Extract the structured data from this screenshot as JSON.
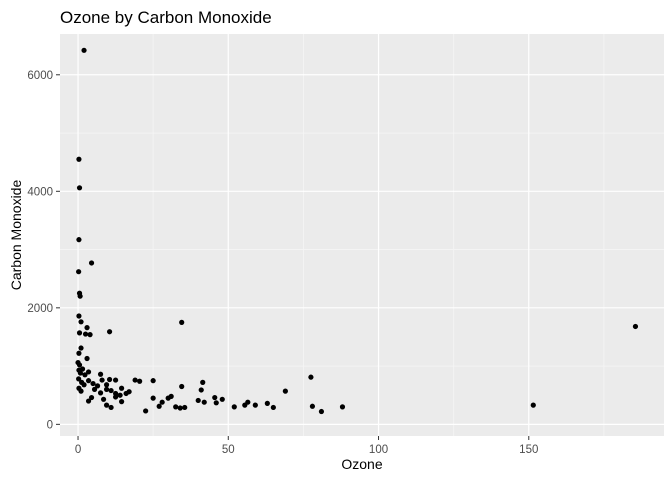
{
  "chart_data": {
    "type": "scatter",
    "title": "Ozone by Carbon Monoxide",
    "xlabel": "Ozone",
    "ylabel": "Carbon Monoxide",
    "xlim": [
      -6,
      195
    ],
    "ylim": [
      -200,
      6700
    ],
    "x_ticks": [
      0,
      50,
      100,
      150
    ],
    "y_ticks": [
      0,
      2000,
      4000,
      6000
    ],
    "x_tick_labels": [
      "0",
      "50",
      "100",
      "150"
    ],
    "y_tick_labels": [
      "0",
      "2000",
      "4000",
      "6000"
    ],
    "grid": true,
    "point_color": "#000000",
    "panel_color": "#ebebeb",
    "points": [
      {
        "x": 2,
        "y": 6420
      },
      {
        "x": 0.3,
        "y": 4550
      },
      {
        "x": 0.5,
        "y": 4060
      },
      {
        "x": 0.3,
        "y": 3170
      },
      {
        "x": 4.5,
        "y": 2770
      },
      {
        "x": 0.2,
        "y": 2620
      },
      {
        "x": 0.5,
        "y": 2250
      },
      {
        "x": 0.7,
        "y": 2200
      },
      {
        "x": 0.3,
        "y": 1860
      },
      {
        "x": 1,
        "y": 1760
      },
      {
        "x": 3,
        "y": 1660
      },
      {
        "x": 34.5,
        "y": 1750
      },
      {
        "x": 0.5,
        "y": 1570
      },
      {
        "x": 2.5,
        "y": 1550
      },
      {
        "x": 4,
        "y": 1540
      },
      {
        "x": 10.5,
        "y": 1590
      },
      {
        "x": 185.5,
        "y": 1680
      },
      {
        "x": 1,
        "y": 1310
      },
      {
        "x": 0.3,
        "y": 1220
      },
      {
        "x": 3,
        "y": 1130
      },
      {
        "x": 0,
        "y": 1060
      },
      {
        "x": 0.5,
        "y": 1020
      },
      {
        "x": 1.5,
        "y": 950
      },
      {
        "x": 0.3,
        "y": 930
      },
      {
        "x": 0.8,
        "y": 880
      },
      {
        "x": 2.3,
        "y": 850
      },
      {
        "x": 3.5,
        "y": 900
      },
      {
        "x": 7.5,
        "y": 860
      },
      {
        "x": 0.2,
        "y": 780
      },
      {
        "x": 1.2,
        "y": 720
      },
      {
        "x": 3.5,
        "y": 750
      },
      {
        "x": 5,
        "y": 700
      },
      {
        "x": 6.5,
        "y": 660
      },
      {
        "x": 8,
        "y": 760
      },
      {
        "x": 9.5,
        "y": 680
      },
      {
        "x": 10.5,
        "y": 770
      },
      {
        "x": 12.5,
        "y": 760
      },
      {
        "x": 14.5,
        "y": 620
      },
      {
        "x": 0.3,
        "y": 620
      },
      {
        "x": 1,
        "y": 570
      },
      {
        "x": 2,
        "y": 680
      },
      {
        "x": 5.5,
        "y": 600
      },
      {
        "x": 7.5,
        "y": 540
      },
      {
        "x": 9.5,
        "y": 600
      },
      {
        "x": 11,
        "y": 580
      },
      {
        "x": 12.5,
        "y": 530
      },
      {
        "x": 14,
        "y": 500
      },
      {
        "x": 16,
        "y": 530
      },
      {
        "x": 17,
        "y": 560
      },
      {
        "x": 19,
        "y": 760
      },
      {
        "x": 20.5,
        "y": 740
      },
      {
        "x": 25,
        "y": 750
      },
      {
        "x": 3.5,
        "y": 400
      },
      {
        "x": 4.5,
        "y": 460
      },
      {
        "x": 8.5,
        "y": 430
      },
      {
        "x": 9.5,
        "y": 330
      },
      {
        "x": 11,
        "y": 290
      },
      {
        "x": 12.5,
        "y": 470
      },
      {
        "x": 14.5,
        "y": 390
      },
      {
        "x": 22.5,
        "y": 230
      },
      {
        "x": 25,
        "y": 450
      },
      {
        "x": 27,
        "y": 310
      },
      {
        "x": 28,
        "y": 380
      },
      {
        "x": 30,
        "y": 450
      },
      {
        "x": 31,
        "y": 480
      },
      {
        "x": 32.5,
        "y": 300
      },
      {
        "x": 34,
        "y": 280
      },
      {
        "x": 35.5,
        "y": 290
      },
      {
        "x": 34.5,
        "y": 650
      },
      {
        "x": 40,
        "y": 410
      },
      {
        "x": 41,
        "y": 590
      },
      {
        "x": 41.5,
        "y": 720
      },
      {
        "x": 42,
        "y": 380
      },
      {
        "x": 45.5,
        "y": 460
      },
      {
        "x": 46,
        "y": 370
      },
      {
        "x": 48,
        "y": 430
      },
      {
        "x": 52,
        "y": 300
      },
      {
        "x": 55.5,
        "y": 330
      },
      {
        "x": 56.5,
        "y": 380
      },
      {
        "x": 59,
        "y": 330
      },
      {
        "x": 63,
        "y": 360
      },
      {
        "x": 65,
        "y": 290
      },
      {
        "x": 69,
        "y": 570
      },
      {
        "x": 77.5,
        "y": 810
      },
      {
        "x": 78,
        "y": 310
      },
      {
        "x": 81,
        "y": 220
      },
      {
        "x": 88,
        "y": 300
      },
      {
        "x": 151.5,
        "y": 330
      }
    ]
  }
}
